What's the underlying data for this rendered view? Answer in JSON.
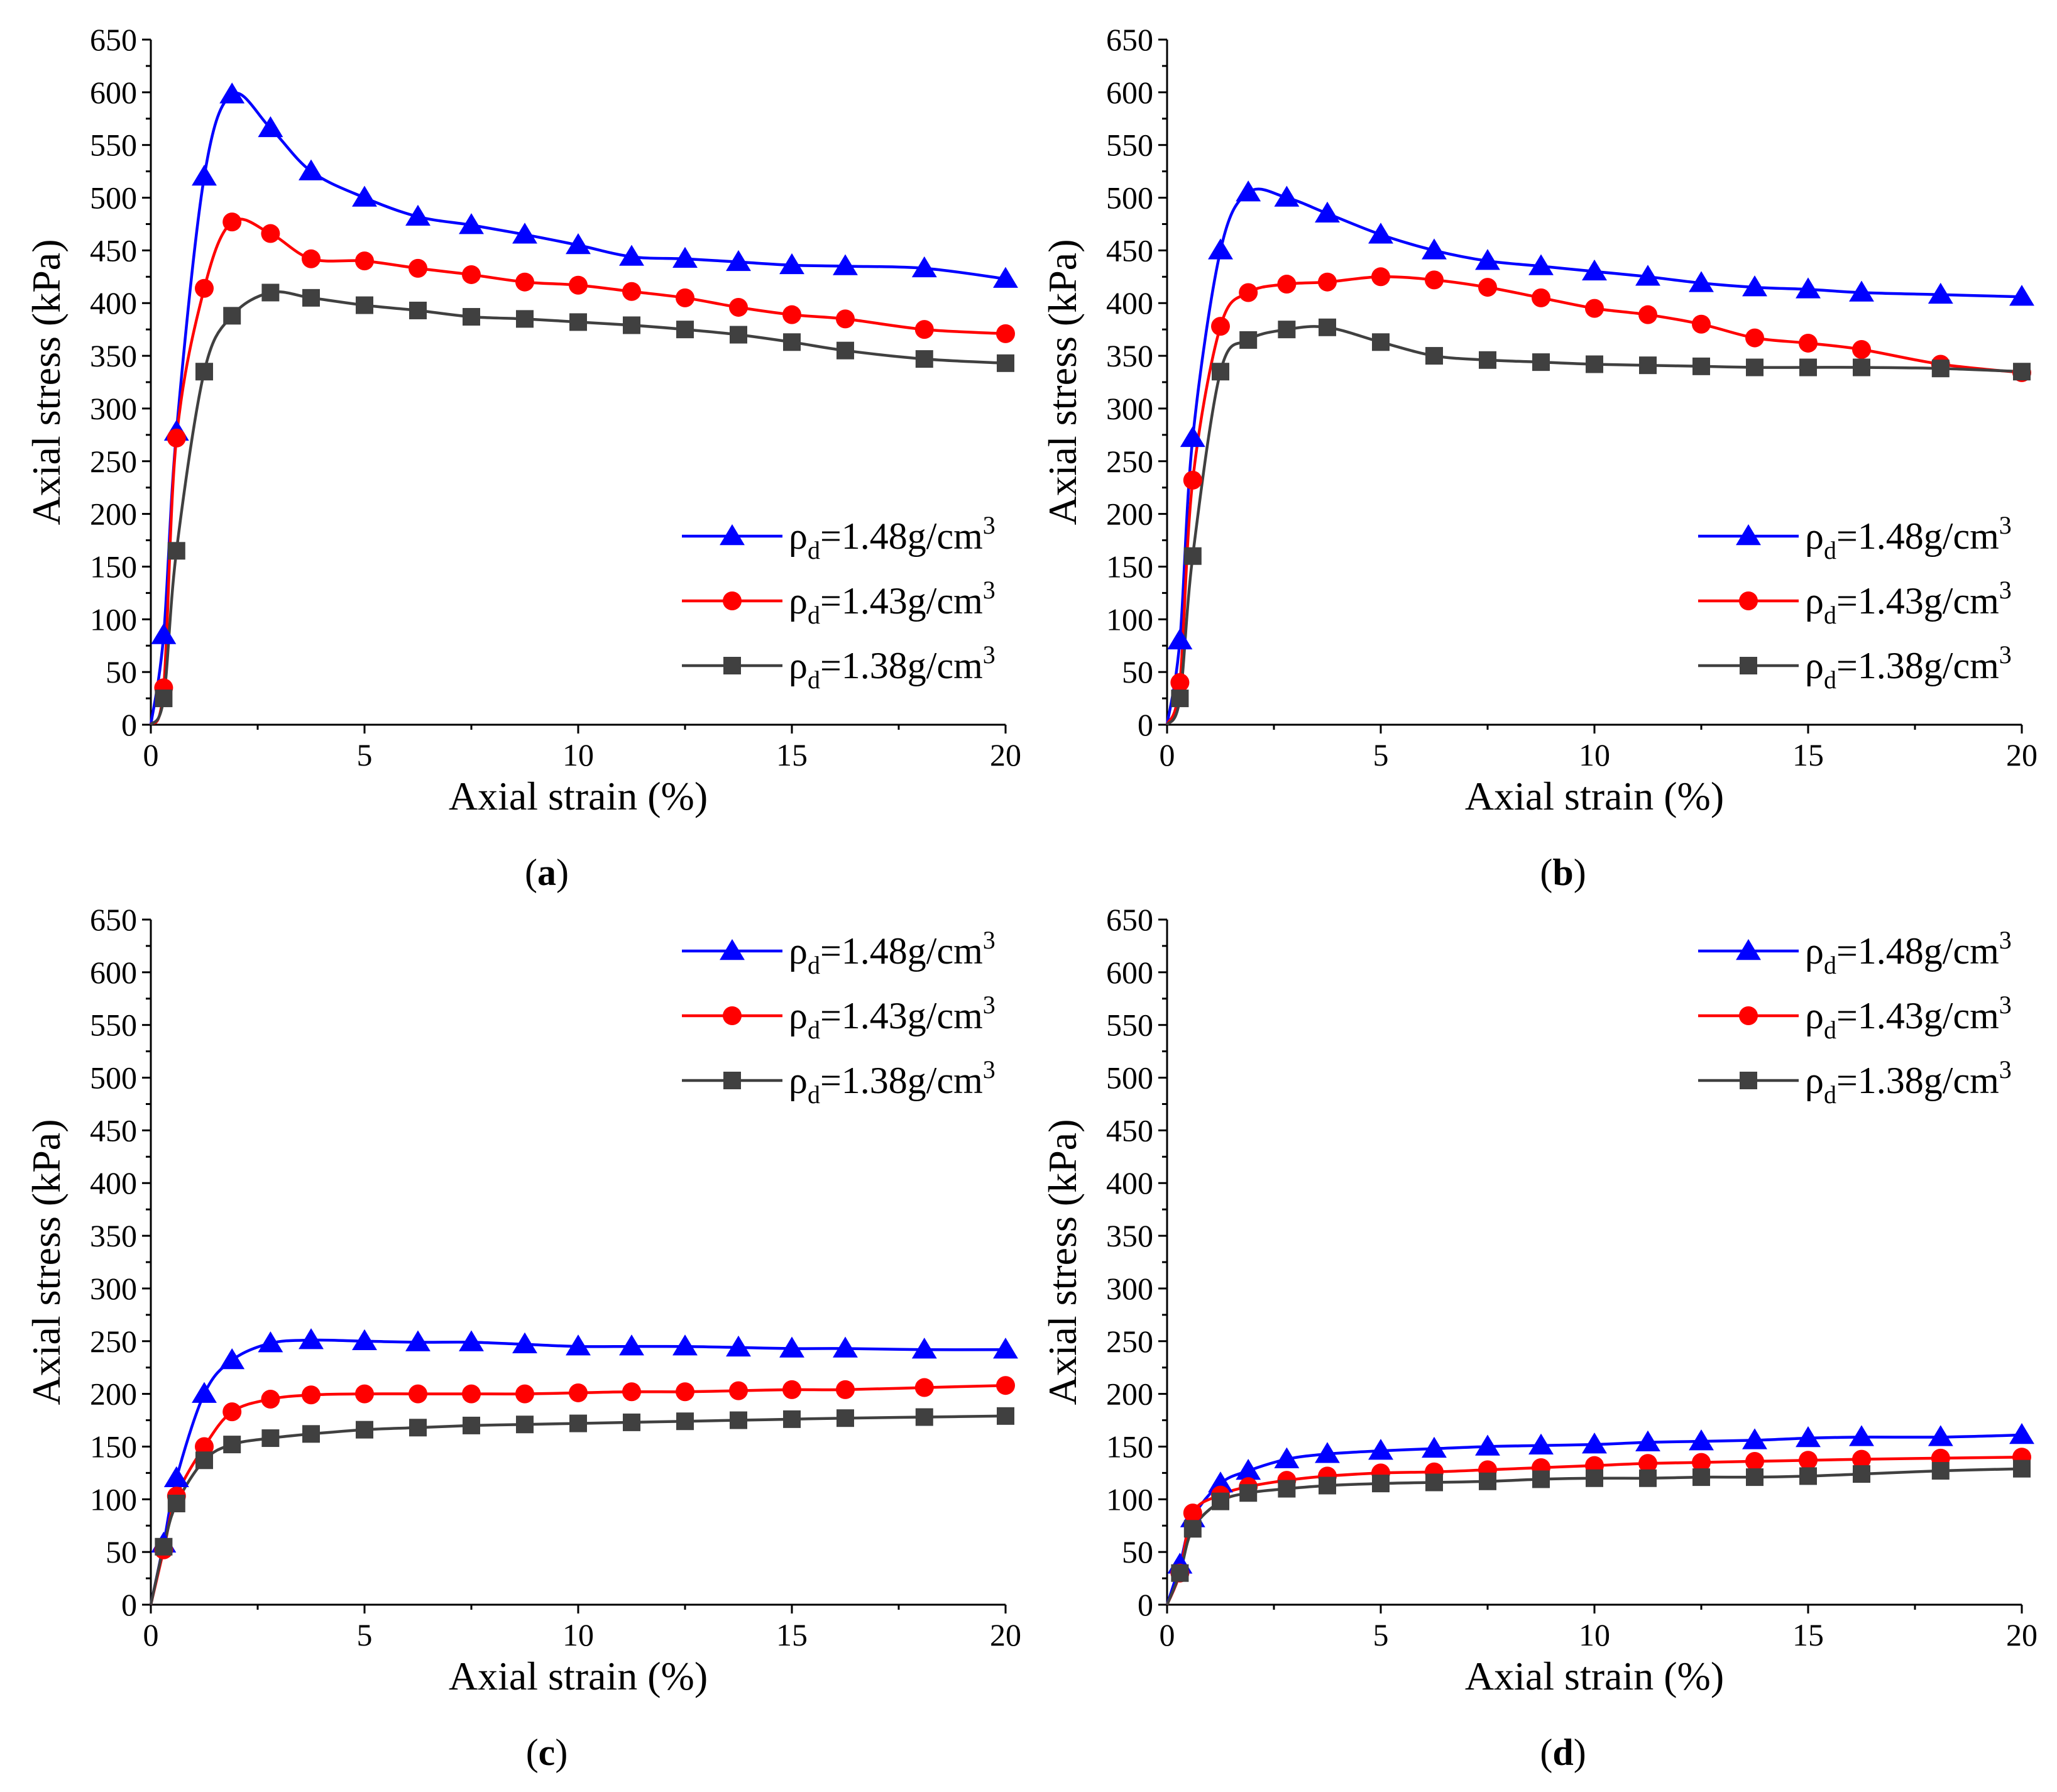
{
  "chart_data": [
    {
      "type": "line",
      "caption_letter": "a",
      "xlabel": "Axial strain (%)",
      "ylabel": "Axial stress (kPa)",
      "xlim": [
        0,
        20
      ],
      "ylim": [
        0,
        650
      ],
      "xticks": [
        0,
        5,
        10,
        15,
        20
      ],
      "yticks": [
        0,
        50,
        100,
        150,
        200,
        250,
        300,
        350,
        400,
        450,
        500,
        550,
        600,
        650
      ],
      "legend_position": "bottom-right",
      "series": [
        {
          "name_prefix": "ρ",
          "name_sub": "d",
          "name_main": "=1.48g/cm",
          "name_sup": "3",
          "color": "#0000ff",
          "marker": "triangle",
          "x": [
            0,
            0.3,
            0.6,
            1.25,
            1.9,
            2.8,
            3.75,
            5.0,
            6.25,
            7.5,
            8.75,
            10.0,
            11.25,
            12.5,
            13.75,
            15.0,
            16.25,
            18.1,
            20.0
          ],
          "y": [
            0,
            85,
            278,
            520,
            598,
            566,
            525,
            500,
            482,
            474,
            465,
            455,
            444,
            442,
            439,
            436,
            435,
            433,
            423
          ]
        },
        {
          "name_prefix": "ρ",
          "name_sub": "d",
          "name_main": "=1.43g/cm",
          "name_sup": "3",
          "color": "#ff0000",
          "marker": "circle",
          "x": [
            0,
            0.3,
            0.6,
            1.25,
            1.9,
            2.8,
            3.75,
            5.0,
            6.25,
            7.5,
            8.75,
            10.0,
            11.25,
            12.5,
            13.75,
            15.0,
            16.25,
            18.1,
            20.0
          ],
          "y": [
            0,
            35,
            272,
            414,
            477,
            466,
            442,
            440,
            433,
            427,
            420,
            417,
            411,
            405,
            396,
            389,
            385,
            375,
            371
          ]
        },
        {
          "name_prefix": "ρ",
          "name_sub": "d",
          "name_main": "=1.38g/cm",
          "name_sup": "3",
          "color": "#404040",
          "marker": "square",
          "x": [
            0,
            0.3,
            0.6,
            1.25,
            1.9,
            2.8,
            3.75,
            5.0,
            6.25,
            7.5,
            8.75,
            10.0,
            11.25,
            12.5,
            13.75,
            15.0,
            16.25,
            18.1,
            20.0
          ],
          "y": [
            0,
            25,
            165,
            335,
            388,
            410,
            405,
            398,
            393,
            387,
            385,
            382,
            379,
            375,
            370,
            363,
            355,
            347,
            343
          ]
        }
      ]
    },
    {
      "type": "line",
      "caption_letter": "b",
      "xlabel": "Axial strain (%)",
      "ylabel": "Axial stress (kPa)",
      "xlim": [
        0,
        20
      ],
      "ylim": [
        0,
        650
      ],
      "xticks": [
        0,
        5,
        10,
        15,
        20
      ],
      "yticks": [
        0,
        50,
        100,
        150,
        200,
        250,
        300,
        350,
        400,
        450,
        500,
        550,
        600,
        650
      ],
      "legend_position": "bottom-right",
      "series": [
        {
          "name_prefix": "ρ",
          "name_sub": "d",
          "name_main": "=1.48g/cm",
          "name_sup": "3",
          "color": "#0000ff",
          "marker": "triangle",
          "x": [
            0,
            0.3,
            0.6,
            1.25,
            1.9,
            2.8,
            3.75,
            5.0,
            6.25,
            7.5,
            8.75,
            10.0,
            11.25,
            12.5,
            13.75,
            15.0,
            16.25,
            18.1,
            20.0
          ],
          "y": [
            0,
            80,
            272,
            450,
            505,
            500,
            485,
            465,
            450,
            440,
            435,
            430,
            425,
            419,
            415,
            413,
            410,
            408,
            406
          ]
        },
        {
          "name_prefix": "ρ",
          "name_sub": "d",
          "name_main": "=1.43g/cm",
          "name_sup": "3",
          "color": "#ff0000",
          "marker": "circle",
          "x": [
            0,
            0.3,
            0.6,
            1.25,
            1.9,
            2.8,
            3.75,
            5.0,
            6.25,
            7.5,
            8.75,
            10.0,
            11.25,
            12.5,
            13.75,
            15.0,
            16.25,
            18.1,
            20.0
          ],
          "y": [
            0,
            40,
            232,
            378,
            410,
            418,
            420,
            425,
            422,
            415,
            405,
            395,
            389,
            380,
            367,
            362,
            356,
            342,
            334
          ]
        },
        {
          "name_prefix": "ρ",
          "name_sub": "d",
          "name_main": "=1.38g/cm",
          "name_sup": "3",
          "color": "#404040",
          "marker": "square",
          "x": [
            0,
            0.3,
            0.6,
            1.25,
            1.9,
            2.8,
            3.75,
            5.0,
            6.25,
            7.5,
            8.75,
            10.0,
            11.25,
            12.5,
            13.75,
            15.0,
            16.25,
            18.1,
            20.0
          ],
          "y": [
            0,
            25,
            160,
            335,
            365,
            375,
            377,
            363,
            350,
            346,
            344,
            342,
            341,
            340,
            339,
            339,
            339,
            338,
            335
          ]
        }
      ]
    },
    {
      "type": "line",
      "caption_letter": "c",
      "xlabel": "Axial strain (%)",
      "ylabel": "Axial stress (kPa)",
      "xlim": [
        0,
        20
      ],
      "ylim": [
        0,
        650
      ],
      "xticks": [
        0,
        5,
        10,
        15,
        20
      ],
      "yticks": [
        0,
        50,
        100,
        150,
        200,
        250,
        300,
        350,
        400,
        450,
        500,
        550,
        600,
        650
      ],
      "legend_position": "top-right",
      "series": [
        {
          "name_prefix": "ρ",
          "name_sub": "d",
          "name_main": "=1.48g/cm",
          "name_sup": "3",
          "color": "#0000ff",
          "marker": "triangle",
          "x": [
            0,
            0.3,
            0.6,
            1.25,
            1.9,
            2.8,
            3.75,
            5.0,
            6.25,
            7.5,
            8.75,
            10.0,
            11.25,
            12.5,
            13.75,
            15.0,
            16.25,
            18.1,
            20.0
          ],
          "y": [
            0,
            58,
            120,
            200,
            232,
            248,
            251,
            250,
            249,
            249,
            247,
            245,
            245,
            245,
            244,
            243,
            243,
            242,
            242
          ]
        },
        {
          "name_prefix": "ρ",
          "name_sub": "d",
          "name_main": "=1.43g/cm",
          "name_sup": "3",
          "color": "#ff0000",
          "marker": "circle",
          "x": [
            0,
            0.3,
            0.6,
            1.25,
            1.9,
            2.8,
            3.75,
            5.0,
            6.25,
            7.5,
            8.75,
            10.0,
            11.25,
            12.5,
            13.75,
            15.0,
            16.25,
            18.1,
            20.0
          ],
          "y": [
            0,
            52,
            103,
            150,
            183,
            195,
            199,
            200,
            200,
            200,
            200,
            201,
            202,
            202,
            203,
            204,
            204,
            206,
            208
          ]
        },
        {
          "name_prefix": "ρ",
          "name_sub": "d",
          "name_main": "=1.38g/cm",
          "name_sup": "3",
          "color": "#404040",
          "marker": "square",
          "x": [
            0,
            0.3,
            0.6,
            1.25,
            1.9,
            2.8,
            3.75,
            5.0,
            6.25,
            7.5,
            8.75,
            10.0,
            11.25,
            12.5,
            13.75,
            15.0,
            16.25,
            18.1,
            20.0
          ],
          "y": [
            0,
            55,
            96,
            137,
            152,
            158,
            162,
            166,
            168,
            170,
            171,
            172,
            173,
            174,
            175,
            176,
            177,
            178,
            179
          ]
        }
      ]
    },
    {
      "type": "line",
      "caption_letter": "d",
      "xlabel": "Axial strain (%)",
      "ylabel": "Axial stress (kPa)",
      "xlim": [
        0,
        20
      ],
      "ylim": [
        0,
        650
      ],
      "xticks": [
        0,
        5,
        10,
        15,
        20
      ],
      "yticks": [
        0,
        50,
        100,
        150,
        200,
        250,
        300,
        350,
        400,
        450,
        500,
        550,
        600,
        650
      ],
      "legend_position": "top-right",
      "series": [
        {
          "name_prefix": "ρ",
          "name_sub": "d",
          "name_main": "=1.48g/cm",
          "name_sup": "3",
          "color": "#0000ff",
          "marker": "triangle",
          "x": [
            0,
            0.3,
            0.6,
            1.25,
            1.9,
            2.8,
            3.75,
            5.0,
            6.25,
            7.5,
            8.75,
            10.0,
            11.25,
            12.5,
            13.75,
            15.0,
            16.25,
            18.1,
            20.0
          ],
          "y": [
            0,
            38,
            82,
            115,
            127,
            138,
            143,
            146,
            148,
            150,
            151,
            152,
            154,
            155,
            156,
            158,
            159,
            159,
            161
          ]
        },
        {
          "name_prefix": "ρ",
          "name_sub": "d",
          "name_main": "=1.43g/cm",
          "name_sup": "3",
          "color": "#ff0000",
          "marker": "circle",
          "x": [
            0,
            0.3,
            0.6,
            1.25,
            1.9,
            2.8,
            3.75,
            5.0,
            6.25,
            7.5,
            8.75,
            10.0,
            11.25,
            12.5,
            13.75,
            15.0,
            16.25,
            18.1,
            20.0
          ],
          "y": [
            0,
            30,
            87,
            104,
            112,
            118,
            122,
            125,
            126,
            128,
            130,
            132,
            134,
            135,
            136,
            137,
            138,
            139,
            140
          ]
        },
        {
          "name_prefix": "ρ",
          "name_sub": "d",
          "name_main": "=1.38g/cm",
          "name_sup": "3",
          "color": "#404040",
          "marker": "square",
          "x": [
            0,
            0.3,
            0.6,
            1.25,
            1.9,
            2.8,
            3.75,
            5.0,
            6.25,
            7.5,
            8.75,
            10.0,
            11.25,
            12.5,
            13.75,
            15.0,
            16.25,
            18.1,
            20.0
          ],
          "y": [
            0,
            30,
            72,
            98,
            106,
            110,
            113,
            115,
            116,
            117,
            119,
            120,
            120,
            121,
            121,
            122,
            124,
            127,
            129
          ]
        }
      ]
    }
  ]
}
